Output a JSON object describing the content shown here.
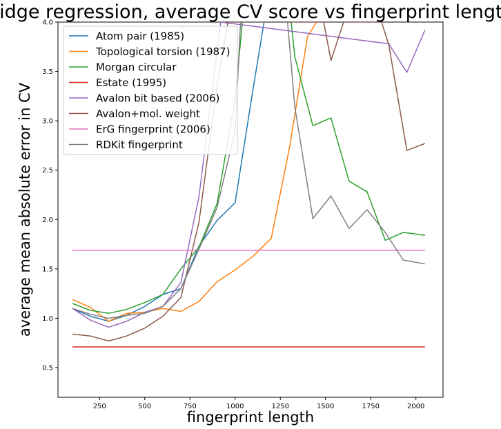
{
  "chart_data": {
    "type": "line",
    "title": "Ridge regression, average CV score vs fingerprint length",
    "xlabel": "fingerprint length",
    "ylabel": "average mean absolute error in CV",
    "xlim": [
      20,
      2150
    ],
    "ylim": [
      0.2,
      4.0
    ],
    "xticks": [
      250,
      500,
      750,
      1000,
      1250,
      1500,
      1750,
      2000
    ],
    "yticks": [
      0.5,
      1.0,
      1.5,
      2.0,
      2.5,
      3.0,
      3.5,
      4.0
    ],
    "grid": false,
    "legend_position": "top-left",
    "series": [
      {
        "name": "Atom pair (1985)",
        "color": "#1f77b4",
        "x": [
          100,
          200,
          300,
          400,
          500,
          600,
          700,
          800,
          900,
          1000,
          1100,
          1160
        ],
        "y": [
          1.1,
          1.02,
          0.97,
          1.03,
          1.12,
          1.24,
          1.3,
          1.73,
          1.99,
          2.17,
          3.33,
          4.0
        ]
      },
      {
        "name": "Topological torsion (1987)",
        "color": "#ff7f0e",
        "x": [
          100,
          200,
          300,
          400,
          500,
          600,
          700,
          800,
          900,
          1000,
          1100,
          1200,
          1300,
          1400,
          1450
        ],
        "y": [
          1.19,
          1.11,
          0.97,
          1.05,
          1.06,
          1.1,
          1.07,
          1.17,
          1.37,
          1.49,
          1.63,
          1.81,
          2.72,
          3.85,
          4.0
        ]
      },
      {
        "name": "Morgan circular",
        "color": "#2ca02c",
        "x": [
          100,
          200,
          300,
          400,
          500,
          600,
          700,
          800,
          900,
          1000,
          1040,
          1310,
          1330,
          1430,
          1530,
          1630,
          1730,
          1830,
          1930,
          2050
        ],
        "y": [
          1.15,
          1.08,
          1.05,
          1.09,
          1.16,
          1.24,
          1.5,
          1.72,
          2.16,
          3.22,
          4.0,
          4.0,
          3.65,
          2.95,
          3.03,
          2.39,
          2.28,
          1.79,
          1.87,
          1.84
        ]
      },
      {
        "name": "Estate (1995)",
        "color": "#d62728",
        "x": [
          100,
          500,
          1000,
          1500,
          2050
        ],
        "y": [
          0.71,
          0.71,
          0.71,
          0.71,
          0.71
        ]
      },
      {
        "name": "Avalon bit based (2006)",
        "color": "#9467bd",
        "x": [
          100,
          200,
          300,
          400,
          500,
          600,
          700,
          800,
          900,
          920,
          1850,
          1950,
          2050
        ],
        "y": [
          1.1,
          0.98,
          0.91,
          0.97,
          1.06,
          1.12,
          1.36,
          2.23,
          3.7,
          4.0,
          3.78,
          3.49,
          3.92
        ]
      },
      {
        "name": "Avalon+mol. weight",
        "color": "#8c564b",
        "x": [
          100,
          200,
          300,
          400,
          500,
          600,
          700,
          800,
          900,
          960,
          1490,
          1530,
          1600,
          1810,
          1850,
          1950,
          2050
        ],
        "y": [
          0.84,
          0.82,
          0.77,
          0.82,
          0.9,
          1.02,
          1.21,
          1.97,
          3.36,
          4.0,
          4.0,
          3.61,
          4.0,
          4.0,
          3.77,
          2.7,
          2.77
        ]
      },
      {
        "name": "ErG fingerprint (2006)",
        "color": "#e377c2",
        "x": [
          100,
          500,
          1000,
          1500,
          2050
        ],
        "y": [
          1.69,
          1.69,
          1.69,
          1.69,
          1.69
        ]
      },
      {
        "name": "RDKit fingerprint",
        "color": "#7f7f7f",
        "x": [
          100,
          200,
          300,
          400,
          500,
          600,
          700,
          800,
          900,
          1000,
          1030,
          1290,
          1330,
          1430,
          1530,
          1630,
          1730,
          1830,
          1930,
          2050
        ],
        "y": [
          1.1,
          1.04,
          1.0,
          1.03,
          1.05,
          1.12,
          1.3,
          1.7,
          2.12,
          2.9,
          4.0,
          4.0,
          3.14,
          2.01,
          2.24,
          1.91,
          2.1,
          1.87,
          1.59,
          1.55
        ]
      }
    ]
  }
}
